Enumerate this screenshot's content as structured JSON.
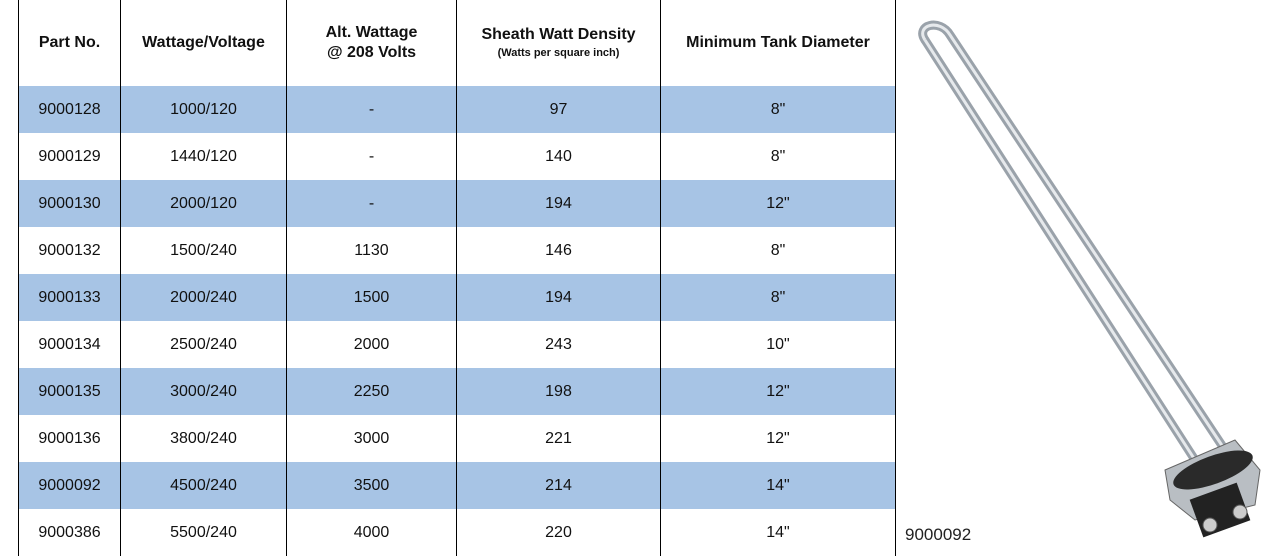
{
  "table": {
    "headers": [
      {
        "lines": [
          "Part No."
        ]
      },
      {
        "lines": [
          "Wattage/Voltage"
        ]
      },
      {
        "lines": [
          "Alt. Wattage",
          "@ 208 Volts"
        ]
      },
      {
        "lines": [
          "Sheath Watt Density"
        ],
        "note": "(Watts per square inch)"
      },
      {
        "lines": [
          "Minimum Tank Diameter"
        ]
      }
    ],
    "rows": [
      [
        "9000128",
        "1000/120",
        "-",
        "97",
        "8\""
      ],
      [
        "9000129",
        "1440/120",
        "-",
        "140",
        "8\""
      ],
      [
        "9000130",
        "2000/120",
        "-",
        "194",
        "12\""
      ],
      [
        "9000132",
        "1500/240",
        "1130",
        "146",
        "8\""
      ],
      [
        "9000133",
        "2000/240",
        "1500",
        "194",
        "8\""
      ],
      [
        "9000134",
        "2500/240",
        "2000",
        "243",
        "10\""
      ],
      [
        "9000135",
        "3000/240",
        "2250",
        "198",
        "12\""
      ],
      [
        "9000136",
        "3800/240",
        "3000",
        "221",
        "12\""
      ],
      [
        "9000092",
        "4500/240",
        "3500",
        "214",
        "14\""
      ],
      [
        "9000386",
        "5500/240",
        "4000",
        "220",
        "14\""
      ]
    ]
  },
  "image": {
    "caption": "9000092"
  }
}
